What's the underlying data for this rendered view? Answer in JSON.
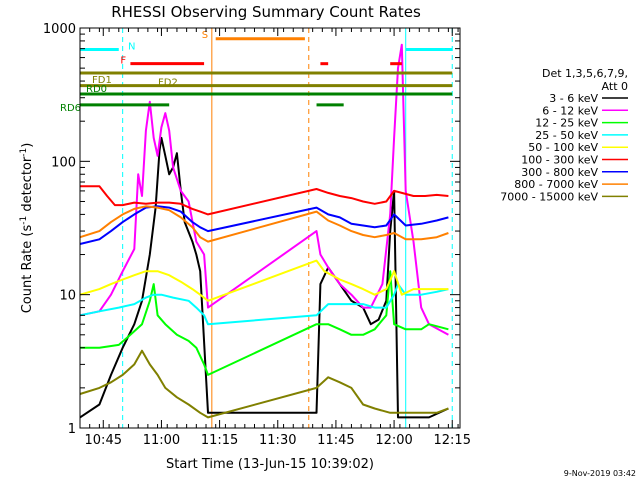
{
  "chart_data": {
    "type": "line",
    "title": "RHESSI Observing Summary Count Rates",
    "xlabel": "Start Time (13-Jun-15 10:39:02)",
    "ylabel_main": "Count Rate (s",
    "ylabel_exp1": "-1",
    "ylabel_mid": " detector",
    "ylabel_exp2": "-1",
    "ylabel_end": ")",
    "yscale": "log",
    "xlim_minutes": [
      0,
      98
    ],
    "ylim": [
      1,
      1000
    ],
    "x_ticks": [
      {
        "minute": 6,
        "label": "10:45"
      },
      {
        "minute": 21,
        "label": "11:00"
      },
      {
        "minute": 36,
        "label": "11:15"
      },
      {
        "minute": 51,
        "label": "11:30"
      },
      {
        "minute": 66,
        "label": "11:45"
      },
      {
        "minute": 81,
        "label": "12:00"
      },
      {
        "minute": 96,
        "label": "12:15"
      }
    ],
    "y_ticks": [
      {
        "value": 1,
        "label": "1"
      },
      {
        "value": 10,
        "label": "10"
      },
      {
        "value": 100,
        "label": "100"
      },
      {
        "value": 1000,
        "label": "1000"
      }
    ],
    "legend_header": [
      "Det 1,3,5,6,7,9,",
      "Att 0"
    ],
    "legend_placement": "right",
    "series": [
      {
        "name": "3 - 6 keV",
        "color": "#000000",
        "points": [
          [
            0,
            1.2
          ],
          [
            5,
            1.5
          ],
          [
            8,
            2.5
          ],
          [
            11,
            4
          ],
          [
            14,
            6
          ],
          [
            16,
            9
          ],
          [
            18,
            20
          ],
          [
            19.5,
            45
          ],
          [
            20.5,
            120
          ],
          [
            21,
            150
          ],
          [
            22,
            110
          ],
          [
            23,
            80
          ],
          [
            24,
            90
          ],
          [
            25,
            115
          ],
          [
            26,
            60
          ],
          [
            27,
            35
          ],
          [
            29,
            25
          ],
          [
            30,
            20
          ],
          [
            31,
            15
          ],
          [
            33,
            1.3
          ],
          [
            50,
            1.3
          ],
          [
            61,
            1.3
          ],
          [
            62,
            12
          ],
          [
            64,
            16
          ],
          [
            67,
            12
          ],
          [
            70,
            9
          ],
          [
            73,
            8
          ],
          [
            75,
            6
          ],
          [
            77,
            6.5
          ],
          [
            79,
            9
          ],
          [
            80,
            30
          ],
          [
            81,
            60
          ],
          [
            82,
            1.2
          ],
          [
            87,
            1.2
          ],
          [
            90,
            1.2
          ],
          [
            95,
            1.4
          ]
        ]
      },
      {
        "name": "6 - 12 keV",
        "color": "#ff00ff",
        "points": [
          [
            0,
            7
          ],
          [
            5,
            7.5
          ],
          [
            8,
            10
          ],
          [
            11,
            15
          ],
          [
            14,
            22
          ],
          [
            15,
            80
          ],
          [
            16,
            55
          ],
          [
            17,
            170
          ],
          [
            18,
            280
          ],
          [
            19,
            150
          ],
          [
            20,
            110
          ],
          [
            21,
            180
          ],
          [
            22,
            230
          ],
          [
            23,
            170
          ],
          [
            24,
            90
          ],
          [
            26,
            60
          ],
          [
            28,
            50
          ],
          [
            30,
            25
          ],
          [
            32,
            20
          ],
          [
            33,
            8
          ],
          [
            61,
            30
          ],
          [
            62,
            20
          ],
          [
            64,
            16
          ],
          [
            67,
            12
          ],
          [
            70,
            10
          ],
          [
            73,
            8
          ],
          [
            75,
            8
          ],
          [
            78,
            12
          ],
          [
            80,
            40
          ],
          [
            81,
            150
          ],
          [
            82,
            500
          ],
          [
            83,
            750
          ],
          [
            84,
            60
          ],
          [
            86,
            25
          ],
          [
            88,
            8
          ],
          [
            90,
            6
          ],
          [
            95,
            5
          ]
        ]
      },
      {
        "name": "12 - 25 keV",
        "color": "#00ff00",
        "points": [
          [
            0,
            4
          ],
          [
            5,
            4
          ],
          [
            10,
            4.2
          ],
          [
            13,
            5
          ],
          [
            16,
            6
          ],
          [
            18,
            9
          ],
          [
            19,
            12
          ],
          [
            20,
            7
          ],
          [
            22,
            6
          ],
          [
            25,
            5
          ],
          [
            28,
            4.5
          ],
          [
            30,
            4
          ],
          [
            32,
            3
          ],
          [
            33,
            2.5
          ],
          [
            61,
            6
          ],
          [
            64,
            6
          ],
          [
            67,
            5.5
          ],
          [
            70,
            5
          ],
          [
            73,
            5
          ],
          [
            76,
            5.5
          ],
          [
            79,
            7
          ],
          [
            80,
            15
          ],
          [
            81,
            6
          ],
          [
            84,
            5.5
          ],
          [
            88,
            5.5
          ],
          [
            90,
            6
          ],
          [
            95,
            5.5
          ]
        ]
      },
      {
        "name": "25 - 50 keV",
        "color": "#00ffff",
        "points": [
          [
            0,
            7
          ],
          [
            5,
            7.5
          ],
          [
            10,
            8
          ],
          [
            14,
            8.5
          ],
          [
            17,
            9.5
          ],
          [
            19,
            10
          ],
          [
            21,
            10
          ],
          [
            24,
            9.5
          ],
          [
            28,
            9
          ],
          [
            30,
            8
          ],
          [
            32,
            7
          ],
          [
            33,
            6
          ],
          [
            61,
            7
          ],
          [
            64,
            8.5
          ],
          [
            67,
            8.5
          ],
          [
            70,
            8.5
          ],
          [
            73,
            8.5
          ],
          [
            76,
            8
          ],
          [
            79,
            8
          ],
          [
            81,
            10
          ],
          [
            82,
            12
          ],
          [
            84,
            10
          ],
          [
            88,
            10
          ],
          [
            92,
            10.5
          ],
          [
            95,
            11
          ]
        ]
      },
      {
        "name": "50 - 100 keV",
        "color": "#ffff00",
        "points": [
          [
            0,
            10
          ],
          [
            5,
            11
          ],
          [
            8,
            12
          ],
          [
            11,
            13
          ],
          [
            14,
            14
          ],
          [
            17,
            15
          ],
          [
            20,
            15
          ],
          [
            23,
            14
          ],
          [
            26,
            12.5
          ],
          [
            29,
            11
          ],
          [
            31,
            10
          ],
          [
            33,
            9
          ],
          [
            61,
            18
          ],
          [
            63,
            15
          ],
          [
            65,
            14
          ],
          [
            67,
            13
          ],
          [
            70,
            12
          ],
          [
            73,
            11
          ],
          [
            76,
            10
          ],
          [
            79,
            11
          ],
          [
            81,
            15
          ],
          [
            83,
            10
          ],
          [
            86,
            11
          ],
          [
            90,
            11
          ],
          [
            95,
            11
          ]
        ]
      },
      {
        "name": "100 - 300 keV",
        "color": "#ff0000",
        "points": [
          [
            0,
            65
          ],
          [
            5,
            65
          ],
          [
            7,
            55
          ],
          [
            9,
            47
          ],
          [
            11,
            47
          ],
          [
            14,
            49
          ],
          [
            17,
            48
          ],
          [
            20,
            49
          ],
          [
            23,
            49
          ],
          [
            26,
            48
          ],
          [
            29,
            44
          ],
          [
            31,
            42
          ],
          [
            33,
            40
          ],
          [
            61,
            62
          ],
          [
            64,
            58
          ],
          [
            67,
            55
          ],
          [
            70,
            53
          ],
          [
            73,
            50
          ],
          [
            76,
            48
          ],
          [
            79,
            50
          ],
          [
            81,
            60
          ],
          [
            83,
            58
          ],
          [
            86,
            55
          ],
          [
            89,
            55
          ],
          [
            92,
            56
          ],
          [
            95,
            55
          ]
        ]
      },
      {
        "name": "300 - 800 keV",
        "color": "#0000ff",
        "points": [
          [
            0,
            24
          ],
          [
            5,
            26
          ],
          [
            8,
            30
          ],
          [
            11,
            35
          ],
          [
            14,
            40
          ],
          [
            17,
            45
          ],
          [
            20,
            46
          ],
          [
            23,
            45
          ],
          [
            26,
            42
          ],
          [
            29,
            35
          ],
          [
            31,
            32
          ],
          [
            33,
            30
          ],
          [
            61,
            45
          ],
          [
            64,
            40
          ],
          [
            67,
            38
          ],
          [
            70,
            34
          ],
          [
            73,
            33
          ],
          [
            76,
            32
          ],
          [
            79,
            33
          ],
          [
            81,
            40
          ],
          [
            84,
            33
          ],
          [
            88,
            34
          ],
          [
            92,
            36
          ],
          [
            95,
            38
          ]
        ]
      },
      {
        "name": "800 - 7000 keV",
        "color": "#ff8000",
        "points": [
          [
            0,
            27
          ],
          [
            5,
            30
          ],
          [
            8,
            35
          ],
          [
            11,
            40
          ],
          [
            14,
            44
          ],
          [
            17,
            46
          ],
          [
            20,
            45
          ],
          [
            23,
            43
          ],
          [
            26,
            38
          ],
          [
            29,
            32
          ],
          [
            31,
            27
          ],
          [
            33,
            25
          ],
          [
            61,
            42
          ],
          [
            64,
            36
          ],
          [
            67,
            33
          ],
          [
            70,
            30
          ],
          [
            73,
            28
          ],
          [
            76,
            27
          ],
          [
            79,
            28
          ],
          [
            81,
            29
          ],
          [
            84,
            26
          ],
          [
            88,
            26
          ],
          [
            92,
            27
          ],
          [
            95,
            29
          ]
        ]
      },
      {
        "name": "7000 - 15000 keV",
        "color": "#808000",
        "points": [
          [
            0,
            1.8
          ],
          [
            5,
            2
          ],
          [
            8,
            2.2
          ],
          [
            11,
            2.5
          ],
          [
            14,
            3
          ],
          [
            16,
            3.8
          ],
          [
            18,
            3
          ],
          [
            20,
            2.5
          ],
          [
            22,
            2
          ],
          [
            25,
            1.7
          ],
          [
            28,
            1.5
          ],
          [
            31,
            1.3
          ],
          [
            33,
            1.2
          ],
          [
            61,
            2
          ],
          [
            64,
            2.4
          ],
          [
            67,
            2.2
          ],
          [
            70,
            2
          ],
          [
            73,
            1.5
          ],
          [
            76,
            1.4
          ],
          [
            80,
            1.3
          ],
          [
            84,
            1.3
          ],
          [
            88,
            1.3
          ],
          [
            92,
            1.3
          ],
          [
            95,
            1.4
          ]
        ]
      }
    ],
    "flags": [
      {
        "label": "N",
        "color": "#00ffff",
        "y_value": 690,
        "segments": [
          [
            0,
            10
          ],
          [
            84,
            96
          ]
        ]
      },
      {
        "name": "F",
        "label": "F",
        "color": "#ff0000",
        "y_value": 540,
        "segments": [
          [
            13,
            32
          ],
          [
            62,
            64
          ],
          [
            80,
            83
          ]
        ]
      },
      {
        "label": "S",
        "color": "#ff8000",
        "y_value": 830,
        "segments": [
          [
            35,
            58
          ]
        ]
      },
      {
        "label": "FD1",
        "color": "#808000",
        "y_value": 460,
        "segments": [
          [
            0,
            96
          ]
        ]
      },
      {
        "label": "FD2",
        "color": "#808000",
        "y_value": 370,
        "segments": [
          [
            0,
            96
          ]
        ]
      },
      {
        "label": "RD0",
        "color": "#008000",
        "y_value": 320,
        "segments": [
          [
            0,
            96
          ]
        ]
      },
      {
        "label": "RD6",
        "color": "#008000",
        "y_value": 265,
        "segments": [
          [
            0,
            23
          ],
          [
            61,
            68
          ]
        ]
      }
    ],
    "vertical_markers": [
      {
        "minute": 11,
        "color": "#00ffff",
        "style": "dashed"
      },
      {
        "minute": 34,
        "color": "#ff8000",
        "style": "solid"
      },
      {
        "minute": 59,
        "color": "#ff8000",
        "style": "dashed"
      },
      {
        "minute": 84,
        "color": "#00ffff",
        "style": "solid"
      },
      {
        "minute": 96,
        "color": "#00ffff",
        "style": "dashed"
      }
    ]
  },
  "footer_date": "9-Nov-2019 03:42"
}
